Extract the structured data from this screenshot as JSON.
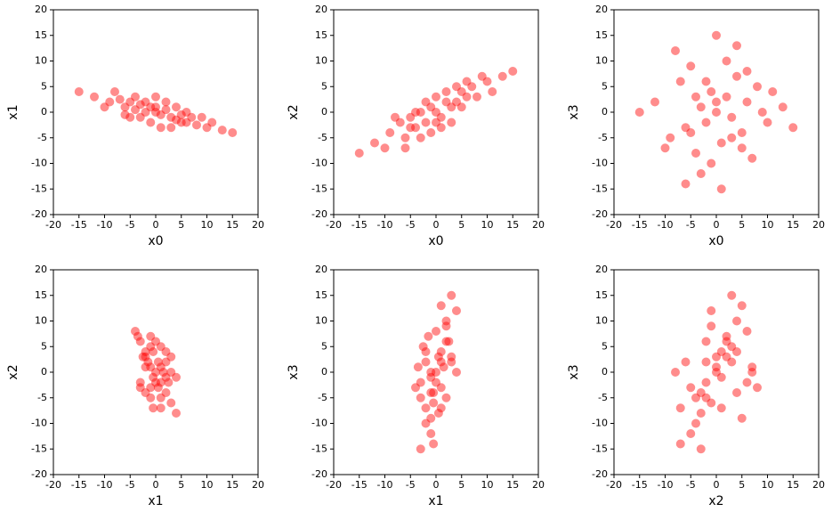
{
  "chart_data": [
    {
      "type": "scatter",
      "color": "#ff0000",
      "xlabel": "x0",
      "ylabel": "x1",
      "xlim": [
        -20,
        20
      ],
      "ylim": [
        -20,
        20
      ],
      "xticks": [
        -20,
        -15,
        -10,
        -5,
        0,
        5,
        10,
        15,
        20
      ],
      "yticks": [
        -20,
        -15,
        -10,
        -5,
        0,
        5,
        10,
        15,
        20
      ],
      "x": [
        -12,
        -9,
        -7,
        -6,
        -5,
        -4,
        -3,
        -2,
        -1,
        0,
        1,
        2,
        3,
        4,
        5,
        6,
        7,
        8,
        10,
        13,
        -8,
        -3,
        2,
        -1,
        4,
        -6,
        0,
        1,
        6,
        -10,
        -4,
        3,
        9,
        -15,
        15,
        -2,
        5,
        0,
        -5,
        11
      ],
      "y": [
        3,
        2,
        2.5,
        1,
        2,
        0.5,
        1.5,
        0,
        1,
        0,
        -0.5,
        0.5,
        -1,
        -1.5,
        -0.5,
        -2,
        -1,
        -2.5,
        -3,
        -3.5,
        4,
        -1,
        2,
        -2,
        1,
        -0.5,
        3,
        -3,
        0,
        1,
        3,
        -3,
        -1,
        4,
        -4,
        2,
        -2,
        1,
        -1,
        -2
      ]
    },
    {
      "type": "scatter",
      "color": "#ff0000",
      "xlabel": "x0",
      "ylabel": "x2",
      "xlim": [
        -20,
        20
      ],
      "ylim": [
        -20,
        20
      ],
      "xticks": [
        -20,
        -15,
        -10,
        -5,
        0,
        5,
        10,
        15,
        20
      ],
      "yticks": [
        -20,
        -15,
        -10,
        -5,
        0,
        5,
        10,
        15,
        20
      ],
      "x": [
        -12,
        -9,
        -7,
        -6,
        -5,
        -4,
        -3,
        -2,
        -1,
        0,
        1,
        2,
        3,
        4,
        5,
        6,
        7,
        8,
        10,
        13,
        -8,
        -3,
        2,
        -1,
        4,
        -6,
        0,
        1,
        6,
        -10,
        -4,
        3,
        9,
        -15,
        15,
        -2,
        5,
        0,
        -5,
        11
      ],
      "y": [
        -6,
        -4,
        -2,
        -5,
        -1,
        -3,
        0,
        -2,
        1,
        0,
        -1,
        2,
        1,
        2,
        4,
        3,
        5,
        3,
        6,
        7,
        -1,
        -5,
        4,
        -4,
        5,
        -7,
        3,
        -3,
        6,
        -7,
        0,
        -2,
        7,
        -8,
        8,
        2,
        1,
        -2,
        -3,
        4
      ]
    },
    {
      "type": "scatter",
      "color": "#ff0000",
      "xlabel": "x0",
      "ylabel": "x3",
      "xlim": [
        -20,
        20
      ],
      "ylim": [
        -20,
        20
      ],
      "xticks": [
        -20,
        -15,
        -10,
        -5,
        0,
        5,
        10,
        15,
        20
      ],
      "yticks": [
        -20,
        -15,
        -10,
        -5,
        0,
        5,
        10,
        15,
        20
      ],
      "x": [
        -12,
        -9,
        -7,
        -6,
        -5,
        -4,
        -3,
        -2,
        -1,
        0,
        1,
        2,
        3,
        4,
        5,
        6,
        7,
        8,
        10,
        13,
        -8,
        -3,
        2,
        -1,
        4,
        -6,
        0,
        1,
        6,
        -10,
        -4,
        3,
        9,
        -15,
        15,
        -2,
        5,
        0,
        -5,
        11
      ],
      "y": [
        2,
        -5,
        6,
        -3,
        9,
        -8,
        1,
        -2,
        4,
        0,
        -6,
        3,
        -1,
        7,
        -4,
        2,
        -9,
        5,
        -2,
        1,
        12,
        -12,
        10,
        -10,
        13,
        -14,
        15,
        -15,
        8,
        -7,
        3,
        -5,
        0,
        0,
        -3,
        6,
        -7,
        2,
        -4,
        4
      ]
    },
    {
      "type": "scatter",
      "color": "#ff0000",
      "xlabel": "x1",
      "ylabel": "x2",
      "xlim": [
        -20,
        20
      ],
      "ylim": [
        -20,
        20
      ],
      "xticks": [
        -20,
        -15,
        -10,
        -5,
        0,
        5,
        10,
        15,
        20
      ],
      "yticks": [
        -20,
        -15,
        -10,
        -5,
        0,
        5,
        10,
        15,
        20
      ],
      "x": [
        3,
        2,
        2.5,
        1,
        2,
        0.5,
        1.5,
        0,
        1,
        0,
        -0.5,
        0.5,
        -1,
        -1.5,
        -0.5,
        -2,
        -1,
        -2.5,
        -3,
        -3.5,
        4,
        -1,
        2,
        -2,
        1,
        -0.5,
        3,
        -3,
        0,
        1,
        3,
        -3,
        -1,
        4,
        -4,
        2,
        -2,
        1,
        -1,
        -2
      ],
      "y": [
        -6,
        -4,
        -2,
        -5,
        -1,
        -3,
        0,
        -2,
        1,
        0,
        -1,
        2,
        1,
        2,
        4,
        3,
        5,
        3,
        6,
        7,
        -1,
        -5,
        4,
        -4,
        5,
        -7,
        3,
        -3,
        6,
        -7,
        0,
        -2,
        7,
        -8,
        8,
        2,
        1,
        -2,
        -3,
        4
      ]
    },
    {
      "type": "scatter",
      "color": "#ff0000",
      "xlabel": "x1",
      "ylabel": "x3",
      "xlim": [
        -20,
        20
      ],
      "ylim": [
        -20,
        20
      ],
      "xticks": [
        -20,
        -15,
        -10,
        -5,
        0,
        5,
        10,
        15,
        20
      ],
      "yticks": [
        -20,
        -15,
        -10,
        -5,
        0,
        5,
        10,
        15,
        20
      ],
      "x": [
        3,
        2,
        2.5,
        1,
        2,
        0.5,
        1.5,
        0,
        1,
        0,
        -0.5,
        0.5,
        -1,
        -1.5,
        -0.5,
        -2,
        -1,
        -2.5,
        -3,
        -3.5,
        4,
        -1,
        2,
        -2,
        1,
        -0.5,
        3,
        -3,
        0,
        1,
        3,
        -3,
        -1,
        4,
        -4,
        2,
        -2,
        1,
        -1,
        -2
      ],
      "y": [
        2,
        -5,
        6,
        -3,
        9,
        -8,
        1,
        -2,
        4,
        0,
        -6,
        3,
        -1,
        7,
        -4,
        2,
        -9,
        5,
        -2,
        1,
        12,
        -12,
        10,
        -10,
        13,
        -14,
        15,
        -15,
        8,
        -7,
        3,
        -5,
        0,
        0,
        -3,
        6,
        -7,
        2,
        -4,
        4
      ]
    },
    {
      "type": "scatter",
      "color": "#ff0000",
      "xlabel": "x2",
      "ylabel": "x3",
      "xlim": [
        -20,
        20
      ],
      "ylim": [
        -20,
        20
      ],
      "xticks": [
        -20,
        -15,
        -10,
        -5,
        0,
        5,
        10,
        15,
        20
      ],
      "yticks": [
        -20,
        -15,
        -10,
        -5,
        0,
        5,
        10,
        15,
        20
      ],
      "x": [
        -6,
        -4,
        -2,
        -5,
        -1,
        -3,
        0,
        -2,
        1,
        0,
        -1,
        2,
        1,
        2,
        4,
        3,
        5,
        3,
        6,
        7,
        -1,
        -5,
        4,
        -4,
        5,
        -7,
        3,
        -3,
        6,
        -7,
        0,
        -2,
        7,
        -8,
        8,
        2,
        1,
        -2,
        -3,
        4
      ],
      "y": [
        2,
        -5,
        6,
        -3,
        9,
        -8,
        1,
        -2,
        4,
        0,
        -6,
        3,
        -1,
        7,
        -4,
        2,
        -9,
        5,
        -2,
        1,
        12,
        -12,
        10,
        -10,
        13,
        -14,
        15,
        -15,
        8,
        -7,
        3,
        -5,
        0,
        0,
        -3,
        6,
        -7,
        2,
        -4,
        4
      ]
    }
  ]
}
